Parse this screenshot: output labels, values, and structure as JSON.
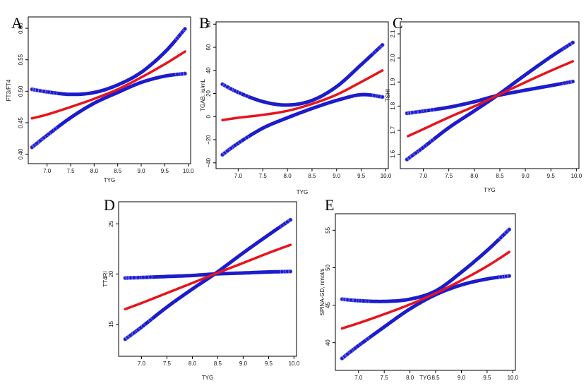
{
  "colors": {
    "fit": "#e8141c",
    "ci": "#1c1ccd",
    "ci_ring": "#7b7bf2"
  },
  "chart_data": [
    {
      "panel": "A",
      "type": "line",
      "xlabel": "TYG",
      "ylabel": "FT3/FT4",
      "xlim": [
        6.6,
        10.05
      ],
      "ylim": [
        0.385,
        0.618
      ],
      "xticks": [
        "7.0",
        "7.5",
        "8.0",
        "8.5",
        "9.0",
        "9.5",
        "10.0"
      ],
      "yticks": [
        "0.40",
        "0.45",
        "0.50",
        "0.55",
        "0.60"
      ],
      "ytick_rotated": true,
      "grid": false,
      "series": [
        {
          "role": "fit",
          "x": [
            6.68,
            7.0,
            7.5,
            8.0,
            8.5,
            9.0,
            9.5,
            9.93
          ],
          "y": [
            0.457,
            0.463,
            0.475,
            0.488,
            0.503,
            0.522,
            0.543,
            0.563
          ]
        },
        {
          "role": "upper",
          "x": [
            6.68,
            7.0,
            7.5,
            8.0,
            8.5,
            9.0,
            9.5,
            9.93
          ],
          "y": [
            0.503,
            0.499,
            0.495,
            0.498,
            0.51,
            0.53,
            0.562,
            0.599
          ]
        },
        {
          "role": "lower",
          "x": [
            6.68,
            7.0,
            7.5,
            8.0,
            8.5,
            9.0,
            9.5,
            9.93
          ],
          "y": [
            0.411,
            0.43,
            0.458,
            0.481,
            0.498,
            0.514,
            0.524,
            0.528
          ]
        }
      ]
    },
    {
      "panel": "B",
      "type": "line",
      "xlabel": "TYG",
      "ylabel": "TGAB, iu/mL",
      "xlim": [
        6.55,
        10.05
      ],
      "ylim": [
        -45,
        82
      ],
      "xticks": [
        "7.0",
        "7.5",
        "8.0",
        "8.5",
        "9.0",
        "9.5",
        "10.0"
      ],
      "yticks": [
        "−40",
        "−20",
        "0",
        "20",
        "40",
        "60",
        "80"
      ],
      "ytick_rotated": true,
      "grid": false,
      "series": [
        {
          "role": "fit",
          "x": [
            6.68,
            7.0,
            7.5,
            8.0,
            8.5,
            9.0,
            9.5,
            9.93
          ],
          "y": [
            -3,
            -1,
            1.5,
            5,
            11,
            19,
            30,
            40
          ]
        },
        {
          "role": "upper",
          "x": [
            6.68,
            7.0,
            7.5,
            8.0,
            8.5,
            9.0,
            9.5,
            9.93
          ],
          "y": [
            28,
            21,
            13,
            10,
            14,
            26,
            45,
            62
          ]
        },
        {
          "role": "lower",
          "x": [
            6.68,
            7.0,
            7.5,
            8.0,
            8.5,
            9.0,
            9.5,
            9.93
          ],
          "y": [
            -33,
            -23,
            -10,
            -1,
            7,
            14,
            19,
            17
          ]
        }
      ]
    },
    {
      "panel": "C",
      "type": "line",
      "xlabel": "TYG",
      "ylabel": "TSHI",
      "xlim": [
        6.55,
        10.05
      ],
      "ylim": [
        1.54,
        2.15
      ],
      "xticks": [
        "7.0",
        "7.5",
        "8.0",
        "8.5",
        "9.0",
        "9.5",
        "10.0"
      ],
      "yticks": [
        "1.6",
        "1.7",
        "1.8",
        "1.9",
        "2.0",
        "2.1"
      ],
      "ytick_rotated": true,
      "grid": false,
      "series": [
        {
          "role": "fit",
          "x": [
            6.7,
            7.0,
            7.5,
            8.0,
            8.44,
            9.0,
            9.5,
            9.93
          ],
          "y": [
            1.675,
            1.704,
            1.753,
            1.799,
            1.843,
            1.899,
            1.947,
            1.986
          ]
        },
        {
          "role": "upper",
          "x": [
            6.68,
            7.0,
            7.5,
            8.0,
            8.44,
            9.0,
            9.5,
            9.93
          ],
          "y": [
            1.77,
            1.779,
            1.795,
            1.818,
            1.843,
            1.866,
            1.885,
            1.902
          ]
        },
        {
          "role": "lower",
          "x": [
            6.68,
            7.0,
            7.5,
            8.0,
            8.44,
            9.0,
            9.5,
            9.93
          ],
          "y": [
            1.578,
            1.628,
            1.71,
            1.78,
            1.843,
            1.93,
            2.005,
            2.064
          ]
        }
      ]
    },
    {
      "panel": "D",
      "type": "line",
      "xlabel": "TYG",
      "ylabel": "TT4RI",
      "xlim": [
        6.55,
        10.05
      ],
      "ylim": [
        11.8,
        27.2
      ],
      "xticks": [
        "7.0",
        "7.5",
        "8.0",
        "8.5",
        "9.0",
        "9.5",
        "10.0"
      ],
      "yticks": [
        "15",
        "20",
        "25"
      ],
      "ytick_rotated": true,
      "grid": false,
      "series": [
        {
          "role": "fit",
          "x": [
            6.68,
            7.0,
            7.5,
            8.0,
            8.44,
            9.0,
            9.5,
            9.93
          ],
          "y": [
            16.5,
            17.1,
            18.1,
            19.1,
            20.0,
            21.1,
            22.1,
            22.9
          ]
        },
        {
          "role": "upper",
          "x": [
            6.68,
            7.0,
            7.5,
            8.0,
            8.44,
            9.0,
            9.5,
            9.93
          ],
          "y": [
            19.6,
            19.65,
            19.75,
            19.85,
            20.0,
            20.1,
            20.2,
            20.25
          ]
        },
        {
          "role": "lower",
          "x": [
            6.68,
            7.0,
            7.5,
            8.0,
            8.44,
            9.0,
            9.5,
            9.93
          ],
          "y": [
            13.5,
            14.7,
            16.7,
            18.5,
            20.0,
            22.1,
            23.9,
            25.4
          ]
        }
      ]
    },
    {
      "panel": "E",
      "type": "line",
      "xlabel": "TYG",
      "ylabel": "SPINA-GD, nmol/s",
      "xlim": [
        6.55,
        10.05
      ],
      "ylim": [
        36.3,
        57.2
      ],
      "xticks": [
        "7.0",
        "7.5",
        "8.0",
        "8.5",
        "9.0",
        "9.5",
        "10.0"
      ],
      "yticks": [
        "40",
        "45",
        "50",
        "55"
      ],
      "ytick_rotated": true,
      "grid": false,
      "series": [
        {
          "role": "fit",
          "x": [
            6.68,
            7.0,
            7.5,
            8.0,
            8.5,
            9.0,
            9.5,
            9.93
          ],
          "y": [
            41.9,
            42.6,
            43.8,
            45.1,
            46.6,
            48.3,
            50.2,
            52.1
          ]
        },
        {
          "role": "upper",
          "x": [
            6.68,
            7.0,
            7.5,
            8.0,
            8.5,
            9.0,
            9.5,
            9.93
          ],
          "y": [
            45.8,
            45.6,
            45.5,
            45.8,
            46.9,
            49.4,
            52.3,
            55.1
          ]
        },
        {
          "role": "lower",
          "x": [
            6.68,
            7.0,
            7.5,
            8.0,
            8.5,
            9.0,
            9.5,
            9.93
          ],
          "y": [
            37.9,
            39.6,
            42.1,
            44.5,
            46.4,
            47.7,
            48.5,
            48.9
          ]
        }
      ]
    }
  ]
}
